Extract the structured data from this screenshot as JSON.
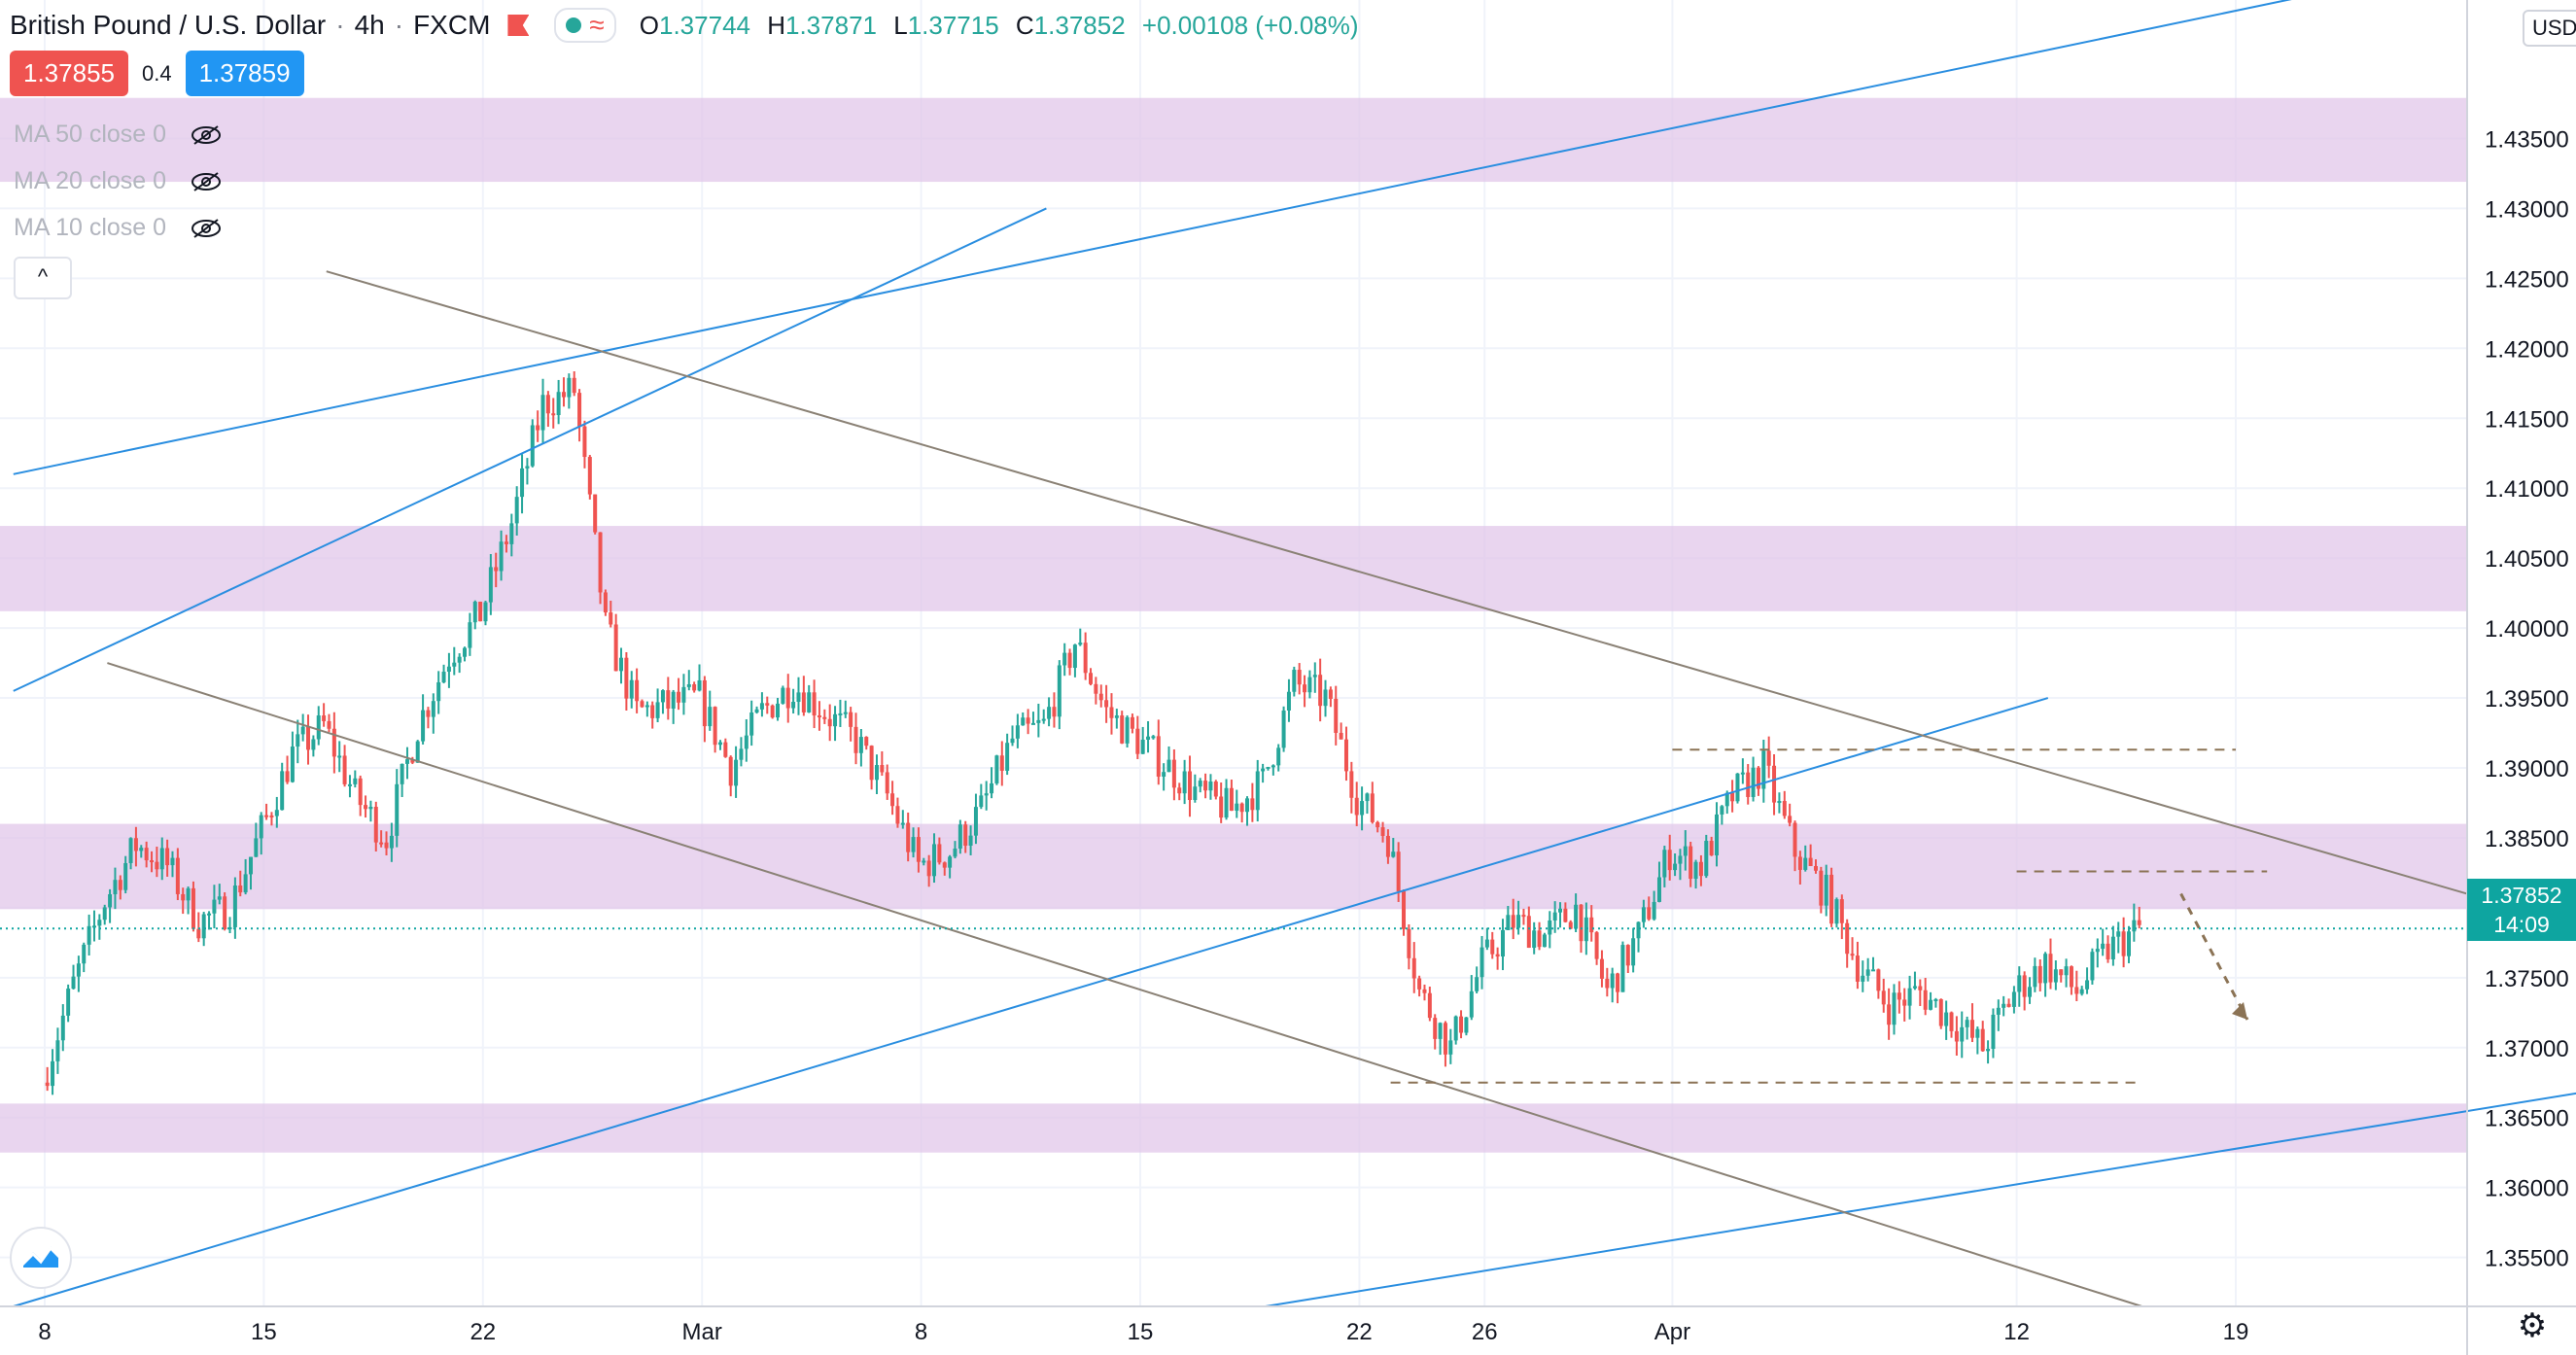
{
  "header": {
    "title": "British Pound / U.S. Dollar",
    "interval": "4h",
    "source": "FXCM",
    "sep": "·",
    "ohlc": {
      "o_label": "O",
      "o_value": "1.37744",
      "h_label": "H",
      "h_value": "1.37871",
      "l_label": "L",
      "l_value": "1.37715",
      "c_label": "C",
      "c_value": "1.37852",
      "change": "+0.00108 (+0.08%)"
    }
  },
  "quote": {
    "sell": "1.37855",
    "spread": "0.4",
    "buy": "1.37859"
  },
  "indicators": [
    {
      "label": "MA 50 close 0"
    },
    {
      "label": "MA 20 close 0"
    },
    {
      "label": "MA 10 close 0"
    }
  ],
  "collapse_label": "^",
  "currency": "USD",
  "current_price": {
    "value": "1.37852",
    "countdown": "14:09"
  },
  "colors": {
    "up": "#26a69a",
    "down": "#ef5350",
    "zone": "#e1c7ea",
    "blue_line": "#2a8ee0",
    "gray_line": "#8a8175",
    "dashed": "#8b7355"
  },
  "chart_data": {
    "type": "candlestick",
    "title": "British Pound / U.S. Dollar",
    "y_ticks": [
      "1.43500",
      "1.43000",
      "1.42500",
      "1.42000",
      "1.41500",
      "1.41000",
      "1.40500",
      "1.40000",
      "1.39500",
      "1.39000",
      "1.38500",
      "1.38000",
      "1.37500",
      "1.37000",
      "1.36500",
      "1.36000",
      "1.35500"
    ],
    "y_tick_values": [
      1.435,
      1.43,
      1.425,
      1.42,
      1.415,
      1.41,
      1.405,
      1.4,
      1.395,
      1.39,
      1.385,
      1.38,
      1.375,
      1.37,
      1.365,
      1.36,
      1.355
    ],
    "ylim": [
      1.3515,
      1.4449
    ],
    "x_tick_labels": [
      "8",
      "15",
      "22",
      "Mar",
      "8",
      "15",
      "22",
      "26",
      "Apr",
      "12",
      "19"
    ],
    "x_tick_dates": [
      "2021-02-08",
      "2021-02-15",
      "2021-02-22",
      "2021-03-01",
      "2021-03-08",
      "2021-03-15",
      "2021-03-22",
      "2021-03-26",
      "2021-04-01",
      "2021-04-12",
      "2021-04-19"
    ],
    "candle_close_path": [
      [
        "2021-02-08",
        1.3675
      ],
      [
        "2021-02-09",
        1.3745
      ],
      [
        "2021-02-10",
        1.3805
      ],
      [
        "2021-02-11",
        1.3845
      ],
      [
        "2021-02-12",
        1.383
      ],
      [
        "2021-02-13",
        1.379
      ],
      [
        "2021-02-14",
        1.38
      ],
      [
        "2021-02-15",
        1.3855
      ],
      [
        "2021-02-16",
        1.391
      ],
      [
        "2021-02-17",
        1.393
      ],
      [
        "2021-02-18",
        1.388
      ],
      [
        "2021-02-19",
        1.385
      ],
      [
        "2021-02-20",
        1.393
      ],
      [
        "2021-02-21",
        1.398
      ],
      [
        "2021-02-22",
        1.401
      ],
      [
        "2021-02-23",
        1.4075
      ],
      [
        "2021-02-24",
        1.416
      ],
      [
        "2021-02-25",
        1.417
      ],
      [
        "2021-02-26",
        1.4
      ],
      [
        "2021-02-27",
        1.394
      ],
      [
        "2021-03-01",
        1.395
      ],
      [
        "2021-03-02",
        1.39
      ],
      [
        "2021-03-03",
        1.394
      ],
      [
        "2021-03-04",
        1.396
      ],
      [
        "2021-03-05",
        1.394
      ],
      [
        "2021-03-06",
        1.392
      ],
      [
        "2021-03-07",
        1.388
      ],
      [
        "2021-03-08",
        1.383
      ],
      [
        "2021-03-09",
        1.384
      ],
      [
        "2021-03-10",
        1.387
      ],
      [
        "2021-03-11",
        1.392
      ],
      [
        "2021-03-12",
        1.393
      ],
      [
        "2021-03-13",
        1.399
      ],
      [
        "2021-03-14",
        1.394
      ],
      [
        "2021-03-15",
        1.392
      ],
      [
        "2021-03-16",
        1.39
      ],
      [
        "2021-03-17",
        1.388
      ],
      [
        "2021-03-18",
        1.387
      ],
      [
        "2021-03-19",
        1.389
      ],
      [
        "2021-03-20",
        1.396
      ],
      [
        "2021-03-21",
        1.395
      ],
      [
        "2021-03-22",
        1.388
      ],
      [
        "2021-03-23",
        1.385
      ],
      [
        "2021-03-24",
        1.374
      ],
      [
        "2021-03-25",
        1.37
      ],
      [
        "2021-03-26",
        1.376
      ],
      [
        "2021-03-27",
        1.379
      ],
      [
        "2021-03-28",
        1.378
      ],
      [
        "2021-03-29",
        1.38
      ],
      [
        "2021-03-30",
        1.374
      ],
      [
        "2021-03-31",
        1.378
      ],
      [
        "2021-04-01",
        1.384
      ],
      [
        "2021-04-02",
        1.383
      ],
      [
        "2021-04-03",
        1.388
      ],
      [
        "2021-04-04",
        1.39
      ],
      [
        "2021-04-05",
        1.384
      ],
      [
        "2021-04-06",
        1.381
      ],
      [
        "2021-04-07",
        1.376
      ],
      [
        "2021-04-08",
        1.373
      ],
      [
        "2021-04-09",
        1.374
      ],
      [
        "2021-04-10",
        1.372
      ],
      [
        "2021-04-11",
        1.37
      ],
      [
        "2021-04-12",
        1.374
      ],
      [
        "2021-04-13",
        1.376
      ],
      [
        "2021-04-14",
        1.374
      ],
      [
        "2021-04-15",
        1.377
      ],
      [
        "2021-04-16",
        1.3785
      ]
    ],
    "zones": [
      {
        "low": 1.4319,
        "high": 1.4379
      },
      {
        "low": 1.4012,
        "high": 1.4073
      },
      {
        "low": 1.3799,
        "high": 1.386
      },
      {
        "low": 1.3625,
        "high": 1.366
      }
    ],
    "dashed_levels": [
      1.3913,
      1.3826,
      1.3675
    ],
    "current_price_line": 1.37852,
    "grid": true,
    "legend": "top-left"
  }
}
